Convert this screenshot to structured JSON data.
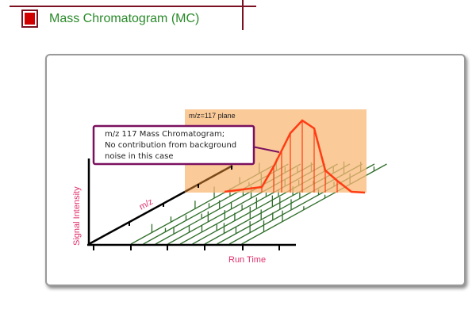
{
  "header": {
    "title": "Mass Chromatogram (MC)",
    "icon": "red-square-icon"
  },
  "diagram": {
    "plane_label": "m/z=117 plane",
    "callout": [
      "m/z 117 Mass Chromatogram;",
      "No contribution from background",
      "noise in this case"
    ],
    "axis_y": "Signal Intensity",
    "axis_mz": "m/z",
    "axis_x": "Run Time",
    "colors": {
      "plane": "#f9c48e",
      "curve": "#ff3c14",
      "spectra": "#2f6e2a",
      "label": "#e0306a",
      "callout_border": "#7a1060"
    }
  }
}
